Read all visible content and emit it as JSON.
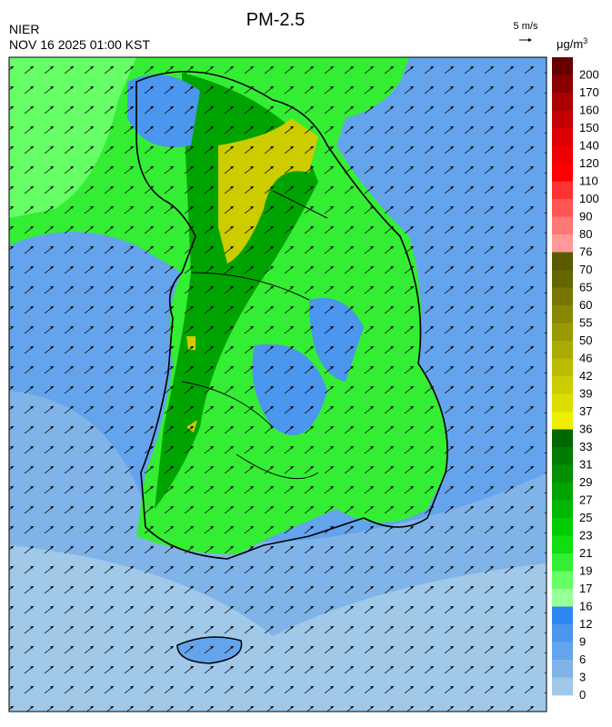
{
  "header": {
    "agency": "NIER",
    "datetime": "NOV 16 2025 01:00 KST",
    "title": "PM-2.5",
    "wind_scale": "5 m/s"
  },
  "legend": {
    "unit": {
      "base": "μg/m",
      "sup": "3"
    },
    "levels": [
      200,
      170,
      160,
      150,
      140,
      120,
      110,
      100,
      90,
      80,
      76,
      70,
      65,
      60,
      55,
      50,
      46,
      42,
      39,
      37,
      36,
      33,
      31,
      29,
      27,
      25,
      23,
      21,
      19,
      17,
      16,
      12,
      9,
      6,
      3,
      0
    ],
    "colors": [
      "#660000",
      "#880000",
      "#aa0000",
      "#c40000",
      "#dd0000",
      "#ee0000",
      "#ff0000",
      "#ff3333",
      "#ff5555",
      "#ff7777",
      "#ff9999",
      "#5a5a00",
      "#666600",
      "#777700",
      "#888800",
      "#999900",
      "#aaaa00",
      "#bbbb00",
      "#cccc00",
      "#dddd00",
      "#eeee00",
      "#006800",
      "#007c00",
      "#009000",
      "#00a400",
      "#00b800",
      "#00cc00",
      "#11dd11",
      "#33ee33",
      "#66ff66",
      "#99ff99",
      "#2e86f0",
      "#4b96ee",
      "#64a4ec",
      "#80b4e8",
      "#a0c8e8"
    ]
  }
}
